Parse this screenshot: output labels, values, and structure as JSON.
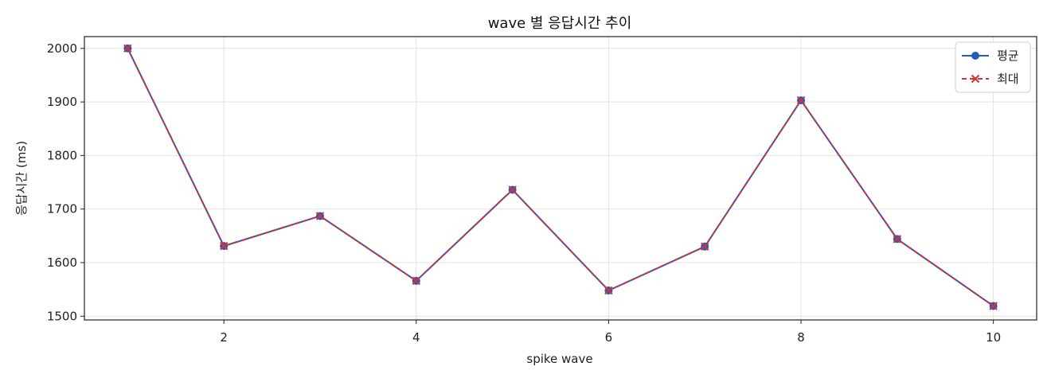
{
  "chart_data": {
    "type": "line",
    "title": "wave 별 응답시간 추이",
    "xlabel": "spike wave",
    "ylabel": "응답시간 (ms)",
    "x": [
      1,
      2,
      3,
      4,
      5,
      6,
      7,
      8,
      9,
      10
    ],
    "xlim": [
      0.55,
      10.45
    ],
    "ylim": [
      1493,
      2022
    ],
    "xticks": [
      2,
      4,
      6,
      8,
      10
    ],
    "yticks": [
      1500,
      1600,
      1700,
      1800,
      1900,
      2000
    ],
    "grid": true,
    "legend_position": "top-right",
    "series": [
      {
        "name": "평균",
        "color": "#1f5fbf",
        "line_style": "solid",
        "marker": "circle",
        "values": [
          2000,
          1631,
          1687,
          1566,
          1736,
          1548,
          1630,
          1903,
          1644,
          1519
        ]
      },
      {
        "name": "최대",
        "color": "#d0333a",
        "line_style": "dashed",
        "marker": "x",
        "values": [
          2000,
          1631,
          1687,
          1566,
          1736,
          1548,
          1630,
          1903,
          1644,
          1519
        ]
      }
    ]
  }
}
